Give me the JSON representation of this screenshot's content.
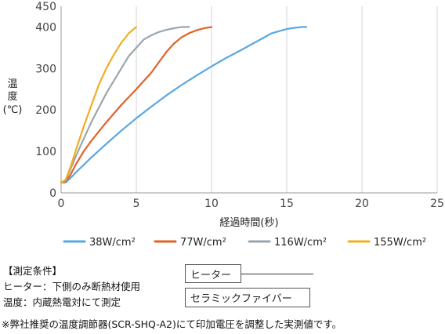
{
  "chart_data": {
    "type": "line",
    "title": "",
    "xlabel": "経過時間(秒)",
    "ylabel": [
      "温",
      "度",
      "(℃)"
    ],
    "xlim": [
      0,
      25
    ],
    "ylim": [
      0,
      450
    ],
    "xticks": [
      0,
      5,
      10,
      15,
      20,
      25
    ],
    "yticks": [
      0,
      100,
      200,
      300,
      400,
      450
    ],
    "grid": "vertical",
    "legend_position": "bottom",
    "series": [
      {
        "name": "38W/cm²",
        "color": "#5aa7e0",
        "x": [
          0,
          0.3,
          0.6,
          1,
          2,
          3,
          4,
          5,
          6,
          7,
          8,
          9,
          10,
          11,
          12,
          13,
          14,
          14.5,
          15,
          15.5,
          16,
          16.3
        ],
        "y": [
          25,
          25,
          35,
          50,
          85,
          118,
          150,
          180,
          208,
          235,
          260,
          283,
          305,
          326,
          345,
          365,
          385,
          390,
          395,
          398,
          400,
          400
        ]
      },
      {
        "name": "77W/cm²",
        "color": "#e0622a",
        "x": [
          0,
          0.3,
          0.6,
          1,
          1.5,
          2,
          3,
          4,
          5,
          6,
          6.5,
          7,
          7.5,
          8,
          8.5,
          9,
          9.5,
          10
        ],
        "y": [
          25,
          28,
          42,
          70,
          100,
          125,
          170,
          212,
          250,
          290,
          315,
          340,
          360,
          375,
          385,
          392,
          397,
          400
        ]
      },
      {
        "name": "116W/cm²",
        "color": "#9aa6ad",
        "x": [
          0,
          0.3,
          0.6,
          1,
          1.5,
          2,
          3,
          4,
          4.5,
          5,
          5.5,
          6,
          6.5,
          7,
          7.5,
          8,
          8.5
        ],
        "y": [
          25,
          30,
          55,
          90,
          130,
          170,
          240,
          300,
          330,
          350,
          370,
          380,
          388,
          393,
          397,
          400,
          400
        ]
      },
      {
        "name": "155W/cm²",
        "color": "#f2ad24",
        "x": [
          0,
          0.3,
          0.6,
          1,
          1.5,
          2,
          2.5,
          3,
          3.5,
          4,
          4.5,
          5
        ],
        "y": [
          25,
          32,
          60,
          105,
          160,
          210,
          260,
          300,
          333,
          362,
          385,
          400
        ]
      }
    ]
  },
  "notes": {
    "title": "【測定条件】",
    "line1": "ヒーター：下側のみ断熱材使用",
    "line2": "温度：内蔵熱電対にて測定"
  },
  "diagram": {
    "heater_label": "ヒーター",
    "ceramic_label": "セラミックファイバー"
  },
  "footnote": "※弊社推奨の温度調節器(SCR-SHQ-A2)にて印加電圧を調整した実測値です。"
}
